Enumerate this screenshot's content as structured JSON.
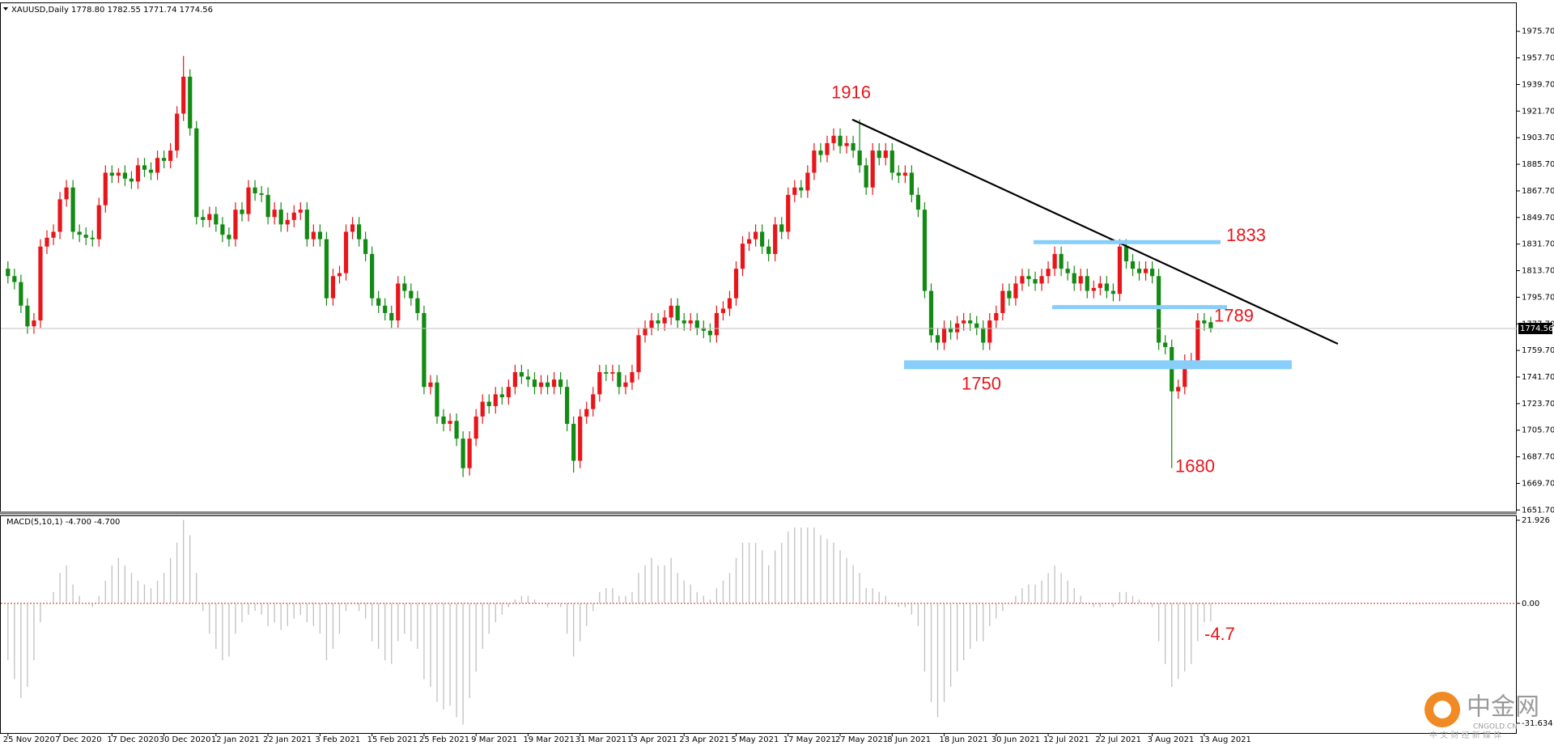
{
  "chart_data": [
    {
      "type": "candlestick",
      "title": "XAUUSD,Daily  1778.80 1782.55 1771.74 1774.56",
      "categories": [
        "25 Nov 2020",
        null,
        null,
        null,
        null,
        null,
        null,
        null,
        "7 Dec 2020",
        null,
        null,
        null,
        null,
        null,
        null,
        null,
        "17 Dec 2020",
        null,
        null,
        null,
        null,
        null,
        null,
        null,
        "30 Dec 2020",
        null,
        null,
        null,
        null,
        null,
        null,
        null,
        "12 Jan 2021",
        null,
        null,
        null,
        null,
        null,
        null,
        null,
        "22 Jan 2021",
        null,
        null,
        null,
        null,
        null,
        null,
        null,
        "3 Feb 2021",
        null,
        null,
        null,
        null,
        null,
        null,
        null,
        "15 Feb 2021",
        null,
        null,
        null,
        null,
        null,
        null,
        null,
        "25 Feb 2021",
        null,
        null,
        null,
        null,
        null,
        null,
        null,
        "9 Mar 2021",
        null,
        null,
        null,
        null,
        null,
        null,
        null,
        "19 Mar 2021",
        null,
        null,
        null,
        null,
        null,
        null,
        null,
        "31 Mar 2021",
        null,
        null,
        null,
        null,
        null,
        null,
        null,
        "13 Apr 2021",
        null,
        null,
        null,
        null,
        null,
        null,
        null,
        "23 Apr 2021",
        null,
        null,
        null,
        null,
        null,
        null,
        null,
        "5 May 2021",
        null,
        null,
        null,
        null,
        null,
        null,
        null,
        "17 May 2021",
        null,
        null,
        null,
        null,
        null,
        null,
        null,
        "27 May 2021",
        null,
        null,
        null,
        null,
        null,
        null,
        null,
        "8 Jun 2021",
        null,
        null,
        null,
        null,
        null,
        null,
        null,
        "18 Jun 2021",
        null,
        null,
        null,
        null,
        null,
        null,
        null,
        "30 Jun 2021",
        null,
        null,
        null,
        null,
        null,
        null,
        null,
        "12 Jul 2021",
        null,
        null,
        null,
        null,
        null,
        null,
        null,
        "22 Jul 2021",
        null,
        null,
        null,
        null,
        null,
        null,
        null,
        "3 Aug 2021",
        null,
        null,
        null,
        null,
        null,
        null,
        null,
        "13 Aug 2021",
        null
      ],
      "open": [
        1815,
        1810,
        1806,
        1790,
        1776,
        1780,
        1830,
        1836,
        1840,
        1862,
        1870,
        1840,
        1838,
        1836,
        1835,
        1858,
        1880,
        1878,
        1880,
        1876,
        1874,
        1885,
        1882,
        1880,
        1890,
        1888,
        1895,
        1920,
        1945,
        1910,
        1850,
        1848,
        1852,
        1845,
        1838,
        1835,
        1855,
        1852,
        1870,
        1866,
        1865,
        1850,
        1855,
        1845,
        1848,
        1853,
        1855,
        1835,
        1840,
        1835,
        1795,
        1810,
        1812,
        1840,
        1845,
        1835,
        1825,
        1795,
        1790,
        1785,
        1780,
        1805,
        1800,
        1795,
        1785,
        1735,
        1738,
        1715,
        1710,
        1712,
        1700,
        1680,
        1700,
        1715,
        1725,
        1722,
        1730,
        1728,
        1735,
        1745,
        1742,
        1740,
        1735,
        1738,
        1735,
        1740,
        1735,
        1710,
        1685,
        1715,
        1720,
        1730,
        1745,
        1744,
        1745,
        1735,
        1738,
        1745,
        1770,
        1775,
        1780,
        1778,
        1782,
        1790,
        1780,
        1778,
        1780,
        1775,
        1773,
        1770,
        1785,
        1788,
        1795,
        1815,
        1832,
        1835,
        1840,
        1830,
        1825,
        1845,
        1840,
        1865,
        1870,
        1868,
        1880,
        1895,
        1892,
        1900,
        1905,
        1898,
        1900,
        1895,
        1885,
        1870,
        1895,
        1890,
        1895,
        1880,
        1878,
        1880,
        1865,
        1855,
        1800,
        1770,
        1765,
        1775,
        1772,
        1778,
        1780,
        1778,
        1775,
        1765,
        1780,
        1785,
        1800,
        1795,
        1805,
        1810,
        1808,
        1805,
        1810,
        1815,
        1825,
        1815,
        1812,
        1805,
        1810,
        1800,
        1802,
        1805,
        1800,
        1798,
        1830,
        1820,
        1815,
        1812,
        1815,
        1810,
        1765,
        1762,
        1732,
        1735,
        1752,
        1753,
        1780,
        1778.8
      ],
      "high": [
        1820,
        1815,
        1811,
        1795,
        1785,
        1835,
        1841,
        1845,
        1867,
        1875,
        1875,
        1845,
        1843,
        1841,
        1863,
        1885,
        1885,
        1883,
        1885,
        1881,
        1890,
        1890,
        1887,
        1895,
        1895,
        1900,
        1925,
        1959,
        1950,
        1915,
        1855,
        1857,
        1857,
        1850,
        1843,
        1860,
        1860,
        1875,
        1875,
        1871,
        1870,
        1860,
        1860,
        1853,
        1858,
        1860,
        1860,
        1845,
        1845,
        1840,
        1815,
        1817,
        1845,
        1850,
        1850,
        1840,
        1830,
        1800,
        1795,
        1790,
        1810,
        1810,
        1805,
        1800,
        1790,
        1743,
        1743,
        1720,
        1717,
        1717,
        1705,
        1705,
        1720,
        1730,
        1730,
        1735,
        1735,
        1740,
        1750,
        1750,
        1747,
        1745,
        1743,
        1743,
        1745,
        1745,
        1740,
        1715,
        1720,
        1725,
        1735,
        1750,
        1750,
        1750,
        1750,
        1743,
        1750,
        1775,
        1780,
        1785,
        1785,
        1787,
        1795,
        1795,
        1785,
        1785,
        1785,
        1780,
        1778,
        1790,
        1793,
        1800,
        1820,
        1837,
        1840,
        1845,
        1845,
        1835,
        1850,
        1850,
        1870,
        1875,
        1875,
        1885,
        1900,
        1900,
        1905,
        1910,
        1910,
        1905,
        1905,
        1916,
        1890,
        1900,
        1900,
        1900,
        1900,
        1885,
        1885,
        1885,
        1870,
        1860,
        1805,
        1775,
        1780,
        1780,
        1783,
        1785,
        1785,
        1783,
        1780,
        1785,
        1790,
        1805,
        1805,
        1810,
        1815,
        1815,
        1813,
        1815,
        1820,
        1830,
        1830,
        1820,
        1817,
        1815,
        1815,
        1807,
        1810,
        1810,
        1805,
        1835,
        1835,
        1825,
        1820,
        1820,
        1820,
        1815,
        1770,
        1767,
        1740,
        1757,
        1758,
        1785,
        1785,
        1782.55
      ],
      "low": [
        1805,
        1801,
        1785,
        1771,
        1771,
        1775,
        1825,
        1831,
        1835,
        1857,
        1835,
        1833,
        1831,
        1830,
        1830,
        1853,
        1873,
        1873,
        1871,
        1869,
        1869,
        1877,
        1875,
        1875,
        1883,
        1883,
        1890,
        1915,
        1905,
        1845,
        1843,
        1843,
        1840,
        1833,
        1830,
        1830,
        1847,
        1847,
        1861,
        1860,
        1845,
        1845,
        1840,
        1840,
        1843,
        1848,
        1830,
        1830,
        1830,
        1790,
        1790,
        1805,
        1807,
        1835,
        1830,
        1820,
        1790,
        1785,
        1780,
        1775,
        1775,
        1795,
        1790,
        1780,
        1730,
        1730,
        1710,
        1705,
        1705,
        1695,
        1674,
        1675,
        1695,
        1710,
        1717,
        1717,
        1723,
        1723,
        1730,
        1737,
        1735,
        1730,
        1730,
        1730,
        1730,
        1730,
        1705,
        1677,
        1680,
        1710,
        1715,
        1725,
        1739,
        1739,
        1730,
        1730,
        1733,
        1740,
        1765,
        1770,
        1773,
        1773,
        1777,
        1775,
        1773,
        1773,
        1770,
        1768,
        1765,
        1765,
        1780,
        1783,
        1790,
        1810,
        1827,
        1830,
        1825,
        1820,
        1820,
        1835,
        1835,
        1860,
        1863,
        1863,
        1875,
        1887,
        1887,
        1895,
        1893,
        1893,
        1890,
        1880,
        1865,
        1865,
        1885,
        1885,
        1875,
        1873,
        1873,
        1860,
        1850,
        1795,
        1765,
        1760,
        1760,
        1767,
        1767,
        1773,
        1773,
        1770,
        1760,
        1760,
        1775,
        1780,
        1790,
        1790,
        1800,
        1803,
        1800,
        1800,
        1805,
        1810,
        1810,
        1807,
        1800,
        1800,
        1795,
        1795,
        1797,
        1795,
        1793,
        1793,
        1815,
        1810,
        1807,
        1807,
        1805,
        1760,
        1757,
        1680,
        1727,
        1730,
        1747,
        1748,
        1773,
        1771.74
      ],
      "close": [
        1810,
        1806,
        1790,
        1776,
        1780,
        1830,
        1836,
        1840,
        1862,
        1870,
        1840,
        1838,
        1836,
        1835,
        1858,
        1880,
        1878,
        1880,
        1876,
        1874,
        1885,
        1882,
        1880,
        1890,
        1888,
        1895,
        1920,
        1945,
        1910,
        1850,
        1848,
        1852,
        1845,
        1838,
        1835,
        1855,
        1852,
        1870,
        1866,
        1865,
        1850,
        1855,
        1845,
        1848,
        1853,
        1855,
        1835,
        1840,
        1835,
        1795,
        1810,
        1812,
        1840,
        1845,
        1835,
        1825,
        1795,
        1790,
        1785,
        1780,
        1805,
        1800,
        1795,
        1785,
        1735,
        1738,
        1715,
        1710,
        1712,
        1700,
        1680,
        1700,
        1715,
        1725,
        1722,
        1730,
        1728,
        1735,
        1745,
        1742,
        1740,
        1735,
        1738,
        1735,
        1740,
        1735,
        1710,
        1685,
        1715,
        1720,
        1730,
        1745,
        1744,
        1745,
        1735,
        1738,
        1745,
        1770,
        1775,
        1780,
        1778,
        1782,
        1790,
        1780,
        1778,
        1780,
        1775,
        1773,
        1770,
        1785,
        1788,
        1795,
        1815,
        1832,
        1835,
        1840,
        1830,
        1825,
        1845,
        1840,
        1865,
        1870,
        1868,
        1880,
        1895,
        1892,
        1900,
        1905,
        1898,
        1900,
        1895,
        1885,
        1870,
        1895,
        1890,
        1895,
        1880,
        1878,
        1880,
        1865,
        1855,
        1800,
        1770,
        1765,
        1775,
        1772,
        1778,
        1780,
        1778,
        1775,
        1765,
        1780,
        1785,
        1800,
        1795,
        1805,
        1810,
        1808,
        1805,
        1810,
        1815,
        1825,
        1815,
        1812,
        1805,
        1810,
        1800,
        1802,
        1805,
        1800,
        1798,
        1830,
        1820,
        1815,
        1812,
        1815,
        1810,
        1765,
        1762,
        1732,
        1735,
        1752,
        1753,
        1780,
        1778,
        1774.56
      ],
      "bull_color": "#e8161b",
      "bear_color": "#138a13",
      "ylim": [
        1649.7,
        1994.7
      ],
      "yticks": [
        {
          "value": 1975.7,
          "label": "1975.70"
        },
        {
          "value": 1957.7,
          "label": "1957.70"
        },
        {
          "value": 1939.7,
          "label": "1939.70"
        },
        {
          "value": 1921.7,
          "label": "1921.70"
        },
        {
          "value": 1903.7,
          "label": "1903.70"
        },
        {
          "value": 1885.7,
          "label": "1885.70"
        },
        {
          "value": 1867.7,
          "label": "1867.70"
        },
        {
          "value": 1849.7,
          "label": "1849.70"
        },
        {
          "value": 1831.7,
          "label": "1831.70"
        },
        {
          "value": 1813.7,
          "label": "1813.70"
        },
        {
          "value": 1795.7,
          "label": "1795.70"
        },
        {
          "value": 1777.7,
          "label": "1777.70"
        },
        {
          "value": 1759.7,
          "label": "1759.70"
        },
        {
          "value": 1741.7,
          "label": "1741.70"
        },
        {
          "value": 1723.7,
          "label": "1723.70"
        },
        {
          "value": 1705.7,
          "label": "1705.70"
        },
        {
          "value": 1687.7,
          "label": "1687.70"
        },
        {
          "value": 1669.7,
          "label": "1669.70"
        },
        {
          "value": 1651.7,
          "label": "1651.70"
        }
      ],
      "annotations": [
        "1916",
        "1833",
        "1789",
        "1750",
        "1680"
      ],
      "annotation_color": "#e8161b",
      "zone_color": "#87cefa"
    },
    {
      "type": "bar",
      "title": "MACD(5,10,1) -4.700 -4.700",
      "values": [
        -15,
        -20,
        -25,
        -22,
        -15,
        -5,
        0,
        3,
        8,
        10,
        5,
        2,
        0,
        -1,
        2,
        6,
        10,
        12,
        10,
        8,
        6,
        5,
        4,
        6,
        8,
        12,
        16,
        22,
        18,
        8,
        -2,
        -8,
        -12,
        -15,
        -14,
        -8,
        -5,
        -3,
        -2,
        -3,
        -6,
        -5,
        -7,
        -6,
        -4,
        -3,
        -5,
        -6,
        -8,
        -15,
        -12,
        -8,
        -2,
        0,
        -2,
        -4,
        -10,
        -12,
        -15,
        -16,
        -10,
        -8,
        -10,
        -12,
        -20,
        -22,
        -26,
        -28,
        -27,
        -30,
        -32,
        -25,
        -18,
        -12,
        -8,
        -5,
        -3,
        -1,
        1,
        2,
        2,
        1,
        0,
        -1,
        0,
        -1,
        -8,
        -14,
        -10,
        -6,
        -2,
        3,
        4,
        4,
        2,
        2,
        3,
        8,
        10,
        12,
        10,
        10,
        12,
        8,
        6,
        5,
        3,
        2,
        1,
        4,
        6,
        8,
        12,
        16,
        16,
        16,
        14,
        10,
        14,
        16,
        19,
        20,
        20,
        20,
        20,
        18,
        17,
        16,
        14,
        12,
        10,
        8,
        4,
        4,
        3,
        2,
        0,
        -1,
        -1,
        -3,
        -6,
        -18,
        -26,
        -30,
        -26,
        -22,
        -18,
        -15,
        -12,
        -10,
        -10,
        -6,
        -4,
        -2,
        0,
        2,
        4,
        5,
        5,
        6,
        8,
        10,
        8,
        6,
        4,
        2,
        0,
        -1,
        -1,
        0,
        -1,
        3,
        3,
        2,
        1,
        0,
        -1,
        -10,
        -16,
        -22,
        -20,
        -18,
        -16,
        -10,
        -5,
        -4.7
      ],
      "color": "#c0c0c0",
      "ylim": [
        -34.2,
        23
      ],
      "yticks": [
        {
          "value": 21.926,
          "label": "21.926"
        },
        {
          "value": 0,
          "label": "0.00"
        },
        {
          "value": -31.634,
          "label": "-31.634"
        }
      ],
      "annotations": [
        "-4.7"
      ]
    }
  ],
  "watermark": {
    "name": "中金网",
    "site": "CNGOLD.CN",
    "slogan": "中 文 财 经 新 媒 体"
  }
}
